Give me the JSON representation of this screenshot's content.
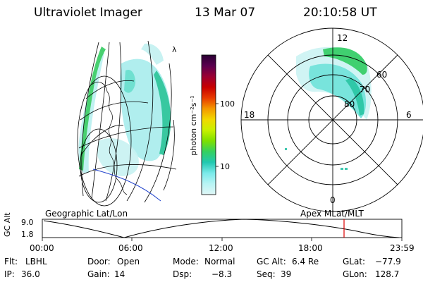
{
  "header": {
    "instrument": "Ultraviolet Imager",
    "date": "13 Mar 07",
    "time": "20:10:58 UT"
  },
  "colorbar": {
    "unit_label": "photon cm⁻²s⁻¹",
    "tick_labels": [
      "100",
      "10"
    ],
    "stops": [
      "#2a0033",
      "#5a004f",
      "#9a0033",
      "#c80000",
      "#e83a00",
      "#f49800",
      "#f2d800",
      "#c8f000",
      "#7ee000",
      "#34d060",
      "#22c8b0",
      "#7aeaea",
      "#b8f4f4",
      "#e0f6f6"
    ]
  },
  "left_panel": {
    "caption": "Geographic Lat/Lon",
    "marker": "λ"
  },
  "polar_panel": {
    "caption": "Apex MLat/MLT",
    "mlt_labels": {
      "top": "12",
      "left": "18",
      "right": "6",
      "bottom": "0"
    },
    "ring_labels": [
      "60",
      "70",
      "80"
    ]
  },
  "timeline": {
    "ylabel": "GC Alt",
    "ytick_labels": [
      "9.0",
      "1.8"
    ],
    "xtick_labels": [
      "00:00",
      "06:00",
      "12:00",
      "18:00",
      "23:59"
    ],
    "marker_color": "#dd0000"
  },
  "status": {
    "row1": [
      {
        "label": "Flt:",
        "value": "LBHL"
      },
      {
        "label": "Door:",
        "value": "Open"
      },
      {
        "label": "Mode:",
        "value": "Normal"
      },
      {
        "label": "GC Alt:",
        "value": "6.4 Re"
      },
      {
        "label": "GLat:",
        "value": "−77.9"
      }
    ],
    "row2": [
      {
        "label": "IP:",
        "value": "36.0"
      },
      {
        "label": "Gain:",
        "value": "14"
      },
      {
        "label": "Dsp:",
        "value": "−8.3"
      },
      {
        "label": "Seq:",
        "value": "39"
      },
      {
        "label": "GLon:",
        "value": "128.7"
      }
    ]
  }
}
